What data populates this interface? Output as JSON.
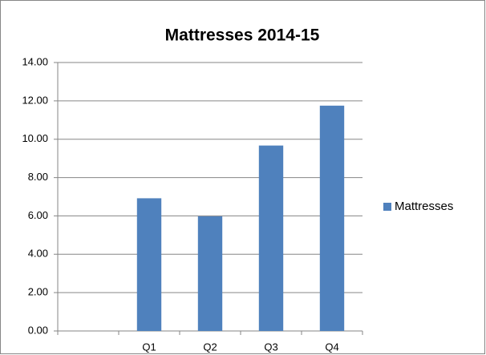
{
  "chart_data": {
    "type": "bar",
    "title": "Mattresses 2014-15",
    "categories": [
      null,
      "Q1",
      "Q2",
      "Q3",
      "Q4"
    ],
    "series": [
      {
        "name": "Mattresses",
        "color": "#4f81bd",
        "values": [
          null,
          6.92,
          5.98,
          9.67,
          11.75
        ]
      }
    ],
    "ylim": [
      0,
      14
    ],
    "yticks": [
      {
        "value": 0,
        "label": "0.00"
      },
      {
        "value": 2,
        "label": "2.00"
      },
      {
        "value": 4,
        "label": "4.00"
      },
      {
        "value": 6,
        "label": "6.00"
      },
      {
        "value": 8,
        "label": "8.00"
      },
      {
        "value": 10,
        "label": "10.00"
      },
      {
        "value": 12,
        "label": "12.00"
      },
      {
        "value": 14,
        "label": "14.00"
      }
    ],
    "grid": true,
    "legend": "right"
  }
}
